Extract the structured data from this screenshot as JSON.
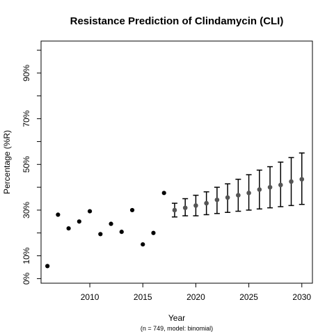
{
  "chart_data": {
    "type": "scatter",
    "title": "Resistance Prediction of Clindamycin (CLI)",
    "xlabel": "Year",
    "ylabel": "Percentage (%R)",
    "subtitle": "(n = 749, model: binomial)",
    "xlim": [
      2005.4,
      2031.0
    ],
    "ylim": [
      -2,
      104
    ],
    "x_ticks": [
      {
        "value": 2010,
        "label": "2010"
      },
      {
        "value": 2015,
        "label": "2015"
      },
      {
        "value": 2020,
        "label": "2020"
      },
      {
        "value": 2025,
        "label": "2025"
      },
      {
        "value": 2030,
        "label": "2030"
      }
    ],
    "y_ticks": [
      {
        "value": 0,
        "label": "0%"
      },
      {
        "value": 10,
        "label": "10%"
      },
      {
        "value": 20,
        "label": ""
      },
      {
        "value": 30,
        "label": "30%"
      },
      {
        "value": 40,
        "label": ""
      },
      {
        "value": 50,
        "label": "50%"
      },
      {
        "value": 60,
        "label": ""
      },
      {
        "value": 70,
        "label": "70%"
      },
      {
        "value": 80,
        "label": ""
      },
      {
        "value": 90,
        "label": "90%"
      },
      {
        "value": 100,
        "label": ""
      }
    ],
    "grid": false,
    "observed": {
      "color": "#000000",
      "x": [
        2006,
        2007,
        2008,
        2009,
        2010,
        2011,
        2012,
        2013,
        2014,
        2015,
        2016,
        2017
      ],
      "y": [
        5.5,
        28,
        22,
        25,
        29.5,
        19.5,
        24,
        20.5,
        30,
        15,
        20,
        37.5
      ]
    },
    "predicted": {
      "color": "#555555",
      "x": [
        2018,
        2019,
        2020,
        2021,
        2022,
        2023,
        2024,
        2025,
        2026,
        2027,
        2028,
        2029,
        2030
      ],
      "y": [
        30,
        31,
        32,
        33,
        34.5,
        35.5,
        36.5,
        37.5,
        39,
        40,
        41,
        42.5,
        43.5
      ],
      "lower": [
        27,
        27.5,
        27.5,
        28,
        28.5,
        29,
        29.5,
        30,
        30.5,
        31,
        31.5,
        32,
        32.5
      ],
      "upper": [
        33,
        35,
        36.5,
        38,
        40,
        41.5,
        43.5,
        45.5,
        47.5,
        49,
        51,
        53,
        55
      ]
    }
  }
}
